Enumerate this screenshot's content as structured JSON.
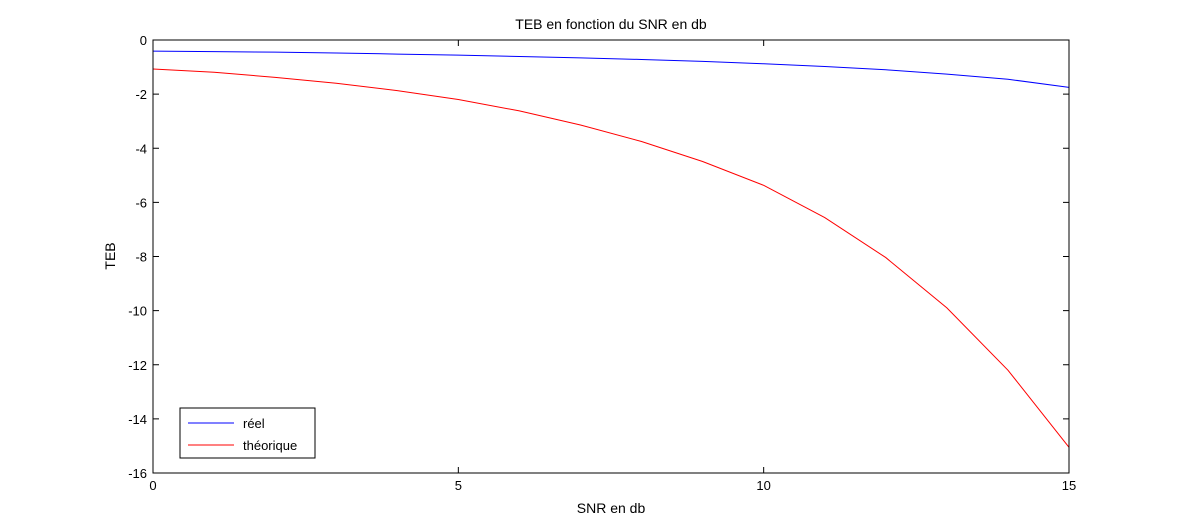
{
  "chart_data": {
    "type": "line",
    "title": "TEB en fonction du SNR en db",
    "xlabel": "SNR en db",
    "ylabel": "TEB",
    "xlim": [
      0,
      15
    ],
    "ylim": [
      -16,
      0
    ],
    "x_ticks": [
      0,
      5,
      10,
      15
    ],
    "y_ticks": [
      0,
      -2,
      -4,
      -6,
      -8,
      -10,
      -12,
      -14,
      -16
    ],
    "x_tick_labels": [
      "0",
      "5",
      "10",
      "15"
    ],
    "y_tick_labels": [
      "0",
      "-2",
      "-4",
      "-6",
      "-8",
      "-10",
      "-12",
      "-14",
      "-16"
    ],
    "grid": false,
    "legend_position": "bottom-left",
    "x": [
      0,
      1,
      2,
      3,
      4,
      5,
      6,
      7,
      8,
      9,
      10,
      11,
      12,
      13,
      14,
      15
    ],
    "series": [
      {
        "name": "réel",
        "color": "#0000ff",
        "values": [
          -0.41,
          -0.43,
          -0.45,
          -0.48,
          -0.52,
          -0.56,
          -0.61,
          -0.66,
          -0.72,
          -0.79,
          -0.88,
          -0.98,
          -1.1,
          -1.26,
          -1.45,
          -1.75
        ]
      },
      {
        "name": "théorique",
        "color": "#ff0000",
        "values": [
          -1.07,
          -1.19,
          -1.38,
          -1.6,
          -1.87,
          -2.2,
          -2.62,
          -3.14,
          -3.75,
          -4.49,
          -5.37,
          -6.56,
          -8.04,
          -9.9,
          -12.2,
          -15.05
        ]
      }
    ]
  }
}
